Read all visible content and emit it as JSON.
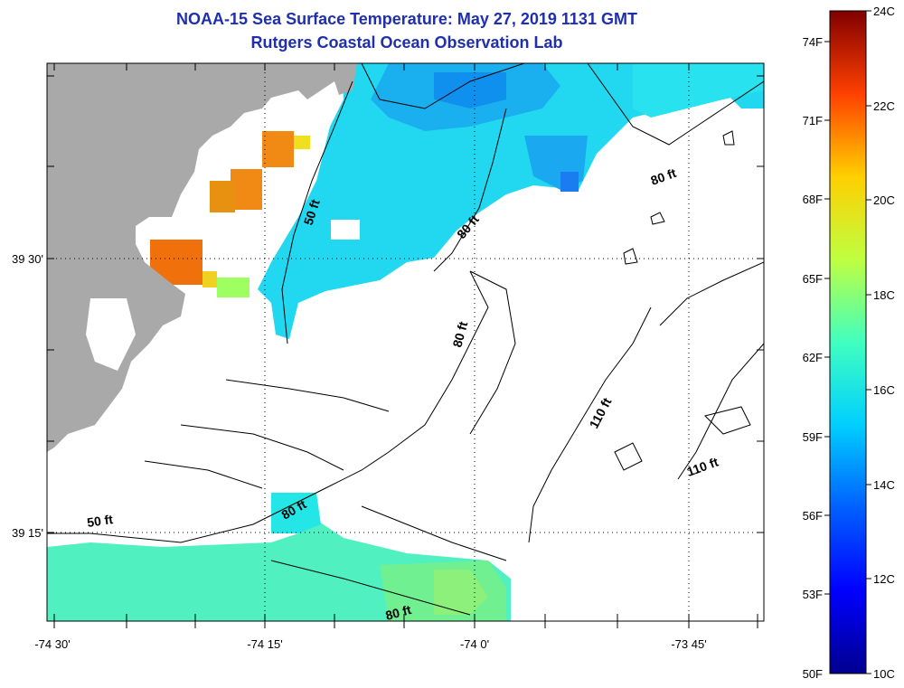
{
  "header": {
    "title": "NOAA-15 Sea Surface Temperature:  May 27, 2019 1131 GMT",
    "subtitle": "Rutgers Coastal Ocean Observation Lab"
  },
  "map": {
    "x_ticks": [
      "-74 30'",
      "-74 15'",
      "-74 0'",
      "-73 45'"
    ],
    "y_ticks": [
      "39 30'",
      "39 15'"
    ],
    "contour_labels": [
      "50 ft",
      "80 ft",
      "80 ft",
      "110 ft",
      "80 ft",
      "110 ft",
      "50 ft",
      "80 ft",
      "80 ft"
    ],
    "colors": {
      "land": "#a9a9a9",
      "no_data": "#ffffff",
      "contour": "#000000"
    }
  },
  "colorbar": {
    "fahrenheit_labels": [
      "74F",
      "71F",
      "68F",
      "65F",
      "62F",
      "59F",
      "56F",
      "53F",
      "50F"
    ],
    "celsius_labels": [
      "24C",
      "22C",
      "20C",
      "18C",
      "16C",
      "14C",
      "12C",
      "10C"
    ],
    "range_c": [
      10,
      24
    ],
    "range_f": [
      50,
      75.2
    ],
    "colormap": "jet"
  }
}
